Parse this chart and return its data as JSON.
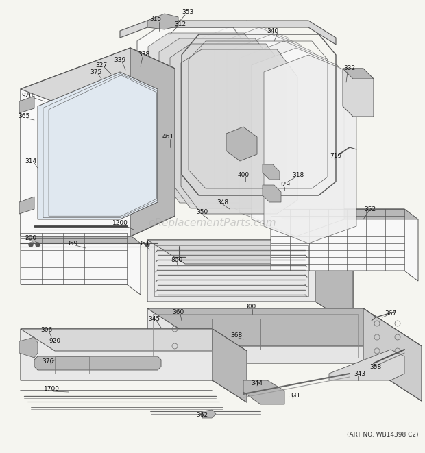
{
  "bg_color": "#f5f5f0",
  "watermark": "eReplacementParts.com",
  "art_no": "(ART NO. WB14398 C2)",
  "fig_width": 6.2,
  "fig_height": 6.61,
  "dpi": 100,
  "edge_color": "#555555",
  "light_gray": "#d8d8d8",
  "mid_gray": "#b8b8b8",
  "dark_gray": "#888888",
  "white": "#f8f8f8",
  "lw_main": 0.8,
  "lw_thin": 0.5,
  "label_fontsize": 6.5,
  "label_color": "#111111",
  "watermark_color": "#aaaaaa",
  "watermark_alpha": 0.55,
  "watermark_fontsize": 11
}
